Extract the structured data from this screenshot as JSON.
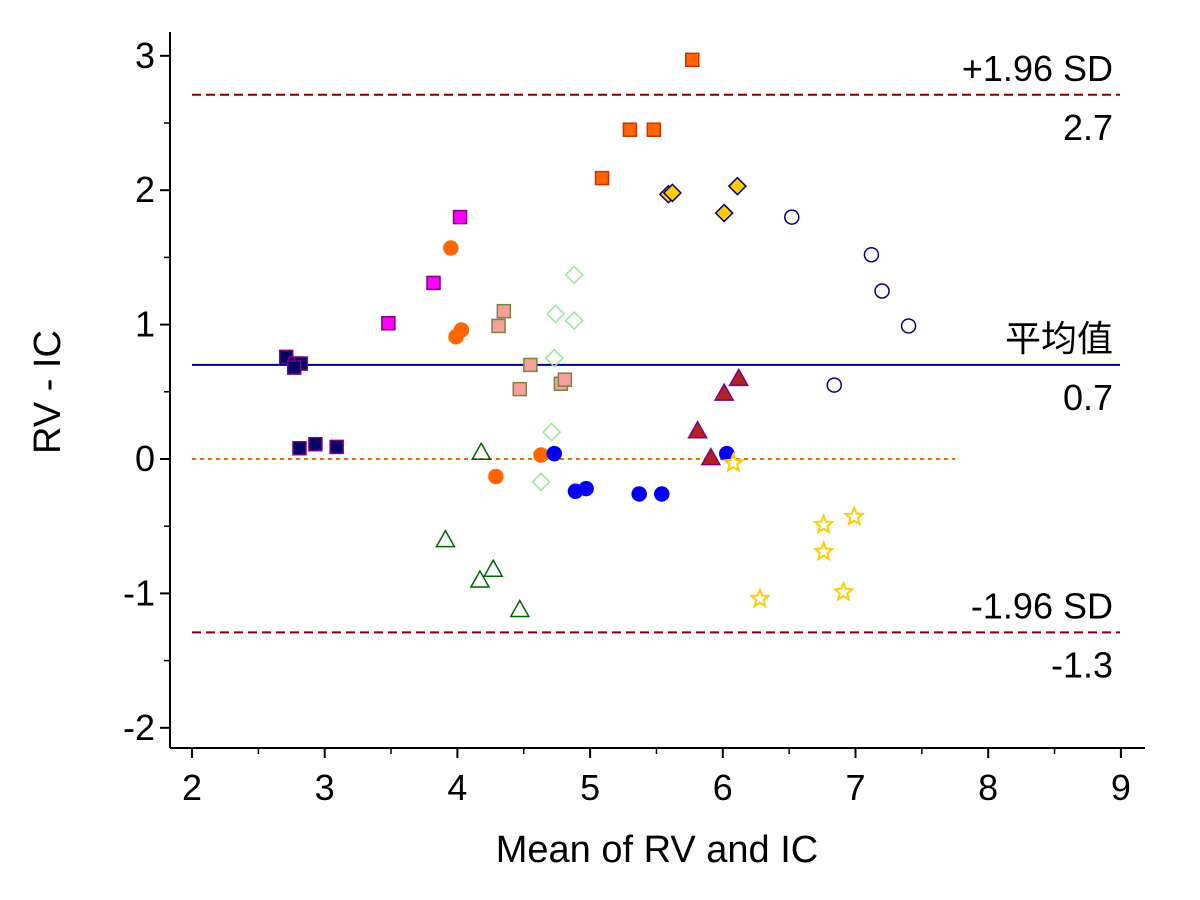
{
  "chart_data": {
    "type": "scatter",
    "title": "",
    "xlabel": "Mean of RV and IC",
    "ylabel": "RV - IC",
    "xlim": [
      2,
      9
    ],
    "ylim": [
      -2.2,
      3.2
    ],
    "x_ticks": [
      2,
      3,
      4,
      5,
      6,
      7,
      8,
      9
    ],
    "x_tick_labels": [
      "2",
      "3",
      "4",
      "5",
      "6",
      "7",
      "8",
      "9"
    ],
    "y_ticks": [
      -2,
      -1,
      0,
      1,
      2,
      3
    ],
    "y_tick_labels": [
      "-2",
      "-1",
      "0",
      "1",
      "2",
      "3"
    ],
    "grid": false,
    "reference_lines": [
      {
        "id": "upper",
        "value": 2.71,
        "label": "+1.96 SD",
        "value_label": "2.7",
        "color": "#800000",
        "style": "dashed"
      },
      {
        "id": "mean",
        "value": 0.7,
        "label": "平均值",
        "value_label": "0.7",
        "color": "#000080",
        "style": "solid"
      },
      {
        "id": "lower",
        "value": -1.29,
        "label": "-1.96 SD",
        "value_label": "-1.3",
        "color": "#800000",
        "style": "dashed"
      },
      {
        "id": "zero",
        "value": 0,
        "x_end": 7.75,
        "label": "",
        "value_label": "",
        "color": "#ff6600",
        "style": "dotted"
      }
    ],
    "groups": [
      {
        "marker": "square",
        "fill": "#000066",
        "stroke": "#800080",
        "points": [
          [
            2.71,
            0.76
          ],
          [
            2.78,
            0.71
          ],
          [
            2.82,
            0.71
          ],
          [
            2.77,
            0.68
          ],
          [
            2.81,
            0.08
          ],
          [
            2.93,
            0.11
          ],
          [
            3.09,
            0.09
          ]
        ]
      },
      {
        "marker": "square",
        "fill": "#ff00ff",
        "stroke": "#800080",
        "points": [
          [
            3.48,
            1.01
          ],
          [
            3.82,
            1.31
          ],
          [
            4.02,
            1.8
          ]
        ]
      },
      {
        "marker": "circle",
        "fill": "#ff6600",
        "stroke": "#ff6600",
        "points": [
          [
            3.95,
            1.57
          ],
          [
            4.03,
            0.96
          ],
          [
            3.99,
            0.91
          ],
          [
            4.29,
            -0.13
          ],
          [
            4.63,
            0.03
          ]
        ]
      },
      {
        "marker": "square",
        "fill": "#f4a09c",
        "stroke": "#808040",
        "points": [
          [
            4.35,
            1.1
          ],
          [
            4.31,
            0.99
          ],
          [
            4.55,
            0.7
          ],
          [
            4.47,
            0.52
          ],
          [
            4.78,
            0.56
          ],
          [
            4.81,
            0.59
          ]
        ]
      },
      {
        "marker": "diamond",
        "fill": "none",
        "stroke": "#99e699",
        "points": [
          [
            4.88,
            1.37
          ],
          [
            4.74,
            1.08
          ],
          [
            4.88,
            1.03
          ],
          [
            4.73,
            0.75
          ],
          [
            4.71,
            0.2
          ],
          [
            4.63,
            -0.17
          ]
        ]
      },
      {
        "marker": "triangle",
        "fill": "none",
        "stroke": "#006400",
        "points": [
          [
            4.18,
            0.05
          ],
          [
            3.91,
            -0.6
          ],
          [
            4.17,
            -0.9
          ],
          [
            4.27,
            -0.82
          ],
          [
            4.47,
            -1.12
          ]
        ]
      },
      {
        "marker": "square",
        "fill": "#ff6600",
        "stroke": "#cc3300",
        "points": [
          [
            5.77,
            2.97
          ],
          [
            5.3,
            2.45
          ],
          [
            5.48,
            2.45
          ],
          [
            5.09,
            2.09
          ]
        ]
      },
      {
        "marker": "circle",
        "fill": "#0000ee",
        "stroke": "#0000ee",
        "points": [
          [
            4.73,
            0.04
          ],
          [
            4.89,
            -0.24
          ],
          [
            4.97,
            -0.22
          ],
          [
            5.37,
            -0.26
          ],
          [
            5.54,
            -0.26
          ],
          [
            6.03,
            0.04
          ]
        ]
      },
      {
        "marker": "diamond",
        "fill": "#ffcc00",
        "stroke": "#000080",
        "points": [
          [
            5.59,
            1.97
          ],
          [
            5.62,
            1.98
          ],
          [
            6.01,
            1.83
          ],
          [
            6.11,
            2.03
          ]
        ]
      },
      {
        "marker": "triangle",
        "fill": "#b22222",
        "stroke": "#800080",
        "points": [
          [
            6.12,
            0.6
          ],
          [
            6.01,
            0.49
          ],
          [
            5.81,
            0.21
          ],
          [
            5.91,
            0.01
          ]
        ]
      },
      {
        "marker": "circle",
        "fill": "none",
        "stroke": "#000080",
        "points": [
          [
            6.52,
            1.8
          ],
          [
            7.12,
            1.52
          ],
          [
            7.2,
            1.25
          ],
          [
            7.4,
            0.99
          ],
          [
            6.84,
            0.55
          ]
        ]
      },
      {
        "marker": "star",
        "fill": "none",
        "stroke": "#ffcc00",
        "points": [
          [
            6.08,
            -0.03
          ],
          [
            6.76,
            -0.49
          ],
          [
            6.76,
            -0.69
          ],
          [
            6.99,
            -0.43
          ],
          [
            6.91,
            -0.99
          ],
          [
            6.28,
            -1.04
          ]
        ]
      }
    ],
    "legend": "none"
  }
}
